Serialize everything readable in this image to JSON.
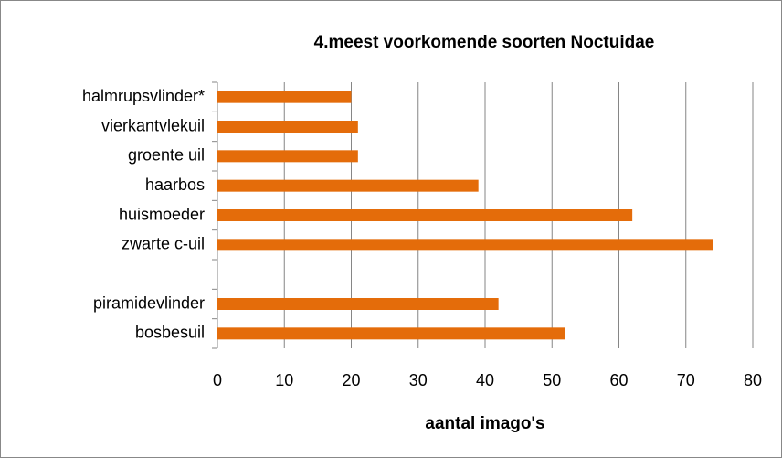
{
  "chart_data": {
    "type": "bar",
    "orientation": "horizontal",
    "title": "4.meest voorkomende soorten Noctuidae",
    "x_label": "aantal imago's",
    "categories": [
      "halmrupsvlinder*",
      "vierkantvlekuil",
      "groente uil",
      "haarbos",
      "huismoeder",
      "zwarte c-uil",
      null,
      "piramidevlinder",
      "bosbesuil"
    ],
    "values": [
      20,
      21,
      21,
      39,
      62,
      74,
      null,
      42,
      52
    ],
    "color": "#e46c0a",
    "xlim": [
      0,
      80
    ],
    "xticks": [
      0,
      10,
      20,
      30,
      40,
      50,
      60,
      70,
      80
    ],
    "grid": true
  }
}
